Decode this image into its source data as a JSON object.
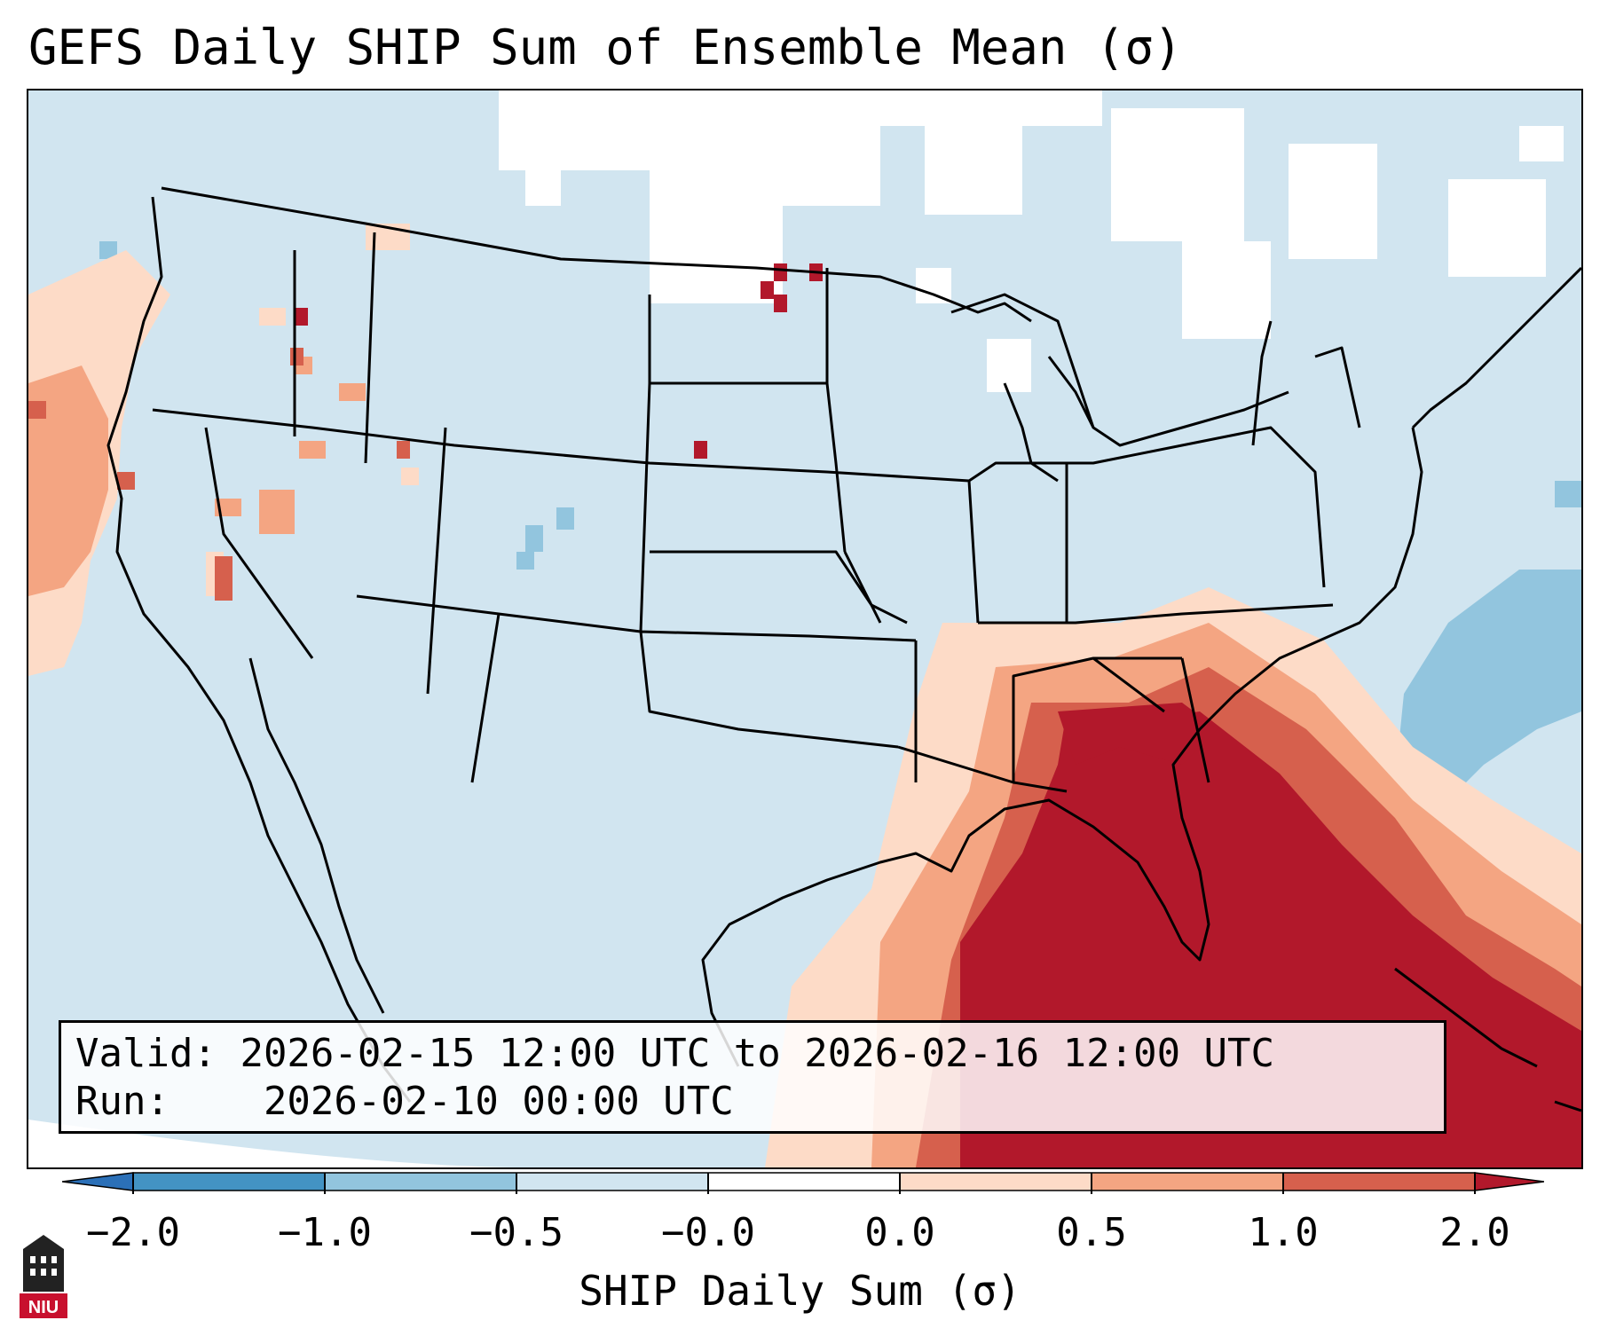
{
  "title": "GEFS Daily SHIP Sum of Ensemble Mean (σ)",
  "info": {
    "valid_label": "Valid:",
    "valid_value": "2026-02-15 12:00 UTC to 2026-02-16 12:00 UTC",
    "run_label": "Run:",
    "run_value": "2026-02-10 00:00 UTC"
  },
  "colorbar": {
    "label": "SHIP Daily Sum (σ)",
    "tick_labels": [
      "−2.0",
      "−1.0",
      "−0.5",
      "−0.0",
      "0.0",
      "0.5",
      "1.0",
      "2.0"
    ],
    "bins": [
      {
        "range": "< -2.0",
        "color": "#2b70b8"
      },
      {
        "range": "-2.0 to -1.0",
        "color": "#4393c3"
      },
      {
        "range": "-1.0 to -0.5",
        "color": "#92c5de"
      },
      {
        "range": "-0.5 to -0.0",
        "color": "#d1e5f0"
      },
      {
        "range": "-0.0 to 0.0",
        "color": "#ffffff"
      },
      {
        "range": "0.0 to 0.5",
        "color": "#fddbc7"
      },
      {
        "range": "0.5 to 1.0",
        "color": "#f4a582"
      },
      {
        "range": "1.0 to 2.0",
        "color": "#d6604d"
      },
      {
        "range": "> 2.0",
        "color": "#b2182b"
      }
    ]
  },
  "map": {
    "region": "Contiguous United States",
    "background_color": "#d1e5f0",
    "max_anomaly_region": "Southeast US, Florida, Gulf Coast"
  },
  "logo": {
    "text": "NIU",
    "name": "niu-logo"
  }
}
